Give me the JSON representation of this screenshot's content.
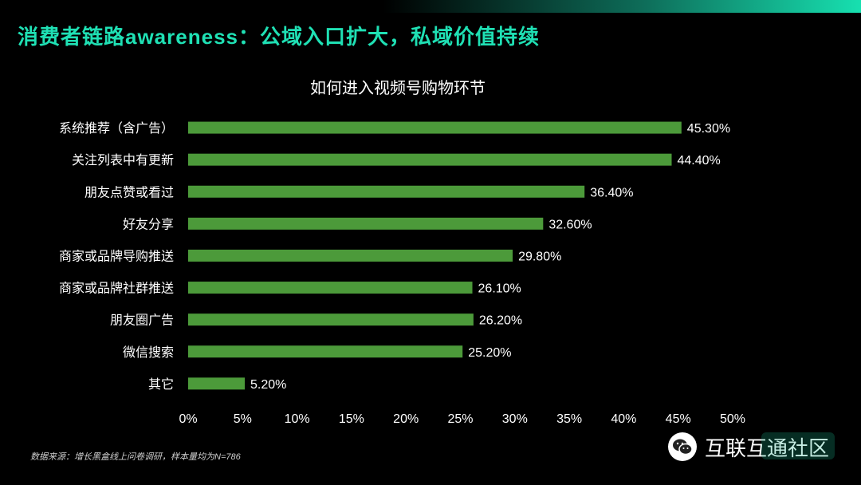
{
  "page": {
    "headline": "消费者链路awareness：公域入口扩大，私域价值持续",
    "source_note": "数据来源：增长黑盒线上问卷调研，样本量均为N=786",
    "watermark_text": "互联互通社区",
    "accent_color": "#1fe0b4",
    "bar_color": "#4c9a3a",
    "icons": [
      "wechat-icon"
    ]
  },
  "chart_data": {
    "type": "bar",
    "orientation": "horizontal",
    "title": "如何进入视频号购物环节",
    "categories": [
      "系统推荐（含广告）",
      "关注列表中有更新",
      "朋友点赞或看过",
      "好友分享",
      "商家或品牌导购推送",
      "商家或品牌社群推送",
      "朋友圈广告",
      "微信搜索",
      "其它"
    ],
    "values": [
      45.3,
      44.4,
      36.4,
      32.6,
      29.8,
      26.1,
      26.2,
      25.2,
      5.2
    ],
    "value_labels": [
      "45.30%",
      "44.40%",
      "36.40%",
      "32.60%",
      "29.80%",
      "26.10%",
      "26.20%",
      "25.20%",
      "5.20%"
    ],
    "xlim": [
      0,
      50
    ],
    "xticks": [
      0,
      5,
      10,
      15,
      20,
      25,
      30,
      35,
      40,
      45,
      50
    ],
    "xtick_labels": [
      "0%",
      "5%",
      "10%",
      "15%",
      "20%",
      "25%",
      "30%",
      "35%",
      "40%",
      "45%",
      "50%"
    ],
    "grid": false,
    "legend": "none"
  }
}
